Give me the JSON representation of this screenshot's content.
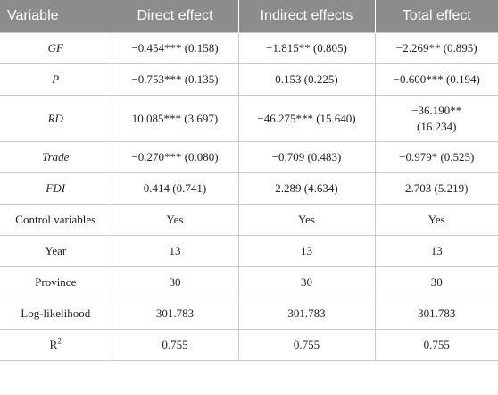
{
  "table": {
    "headers": [
      "Variable",
      "Direct effect",
      "Indirect effects",
      "Total effect"
    ],
    "rows": [
      {
        "variable": "GF",
        "direct": "−0.454*** (0.158)",
        "indirect": "−1.815** (0.805)",
        "total": "−2.269** (0.895)"
      },
      {
        "variable": "P",
        "direct": "−0.753*** (0.135)",
        "indirect": "0.153 (0.225)",
        "total": "−0.600*** (0.194)"
      },
      {
        "variable": "RD",
        "direct": "10.085*** (3.697)",
        "indirect": "−46.275*** (15.640)",
        "total": "−36.190** (16.234)"
      },
      {
        "variable": "Trade",
        "direct": "−0.270*** (0.080)",
        "indirect": "−0.709 (0.483)",
        "total": "−0.979* (0.525)"
      },
      {
        "variable": "FDI",
        "direct": "0.414 (0.741)",
        "indirect": "2.289 (4.634)",
        "total": "2.703 (5.219)"
      },
      {
        "variable": "Control variables",
        "direct": "Yes",
        "indirect": "Yes",
        "total": "Yes"
      },
      {
        "variable": "Year",
        "direct": "13",
        "indirect": "13",
        "total": "13"
      },
      {
        "variable": "Province",
        "direct": "30",
        "indirect": "30",
        "total": "30"
      },
      {
        "variable": "Log-likelihood",
        "direct": "301.783",
        "indirect": "301.783",
        "total": "301.783"
      },
      {
        "variable": "R",
        "direct": "0.755",
        "indirect": "0.755",
        "total": "0.755"
      }
    ],
    "r_superscript": "2"
  }
}
